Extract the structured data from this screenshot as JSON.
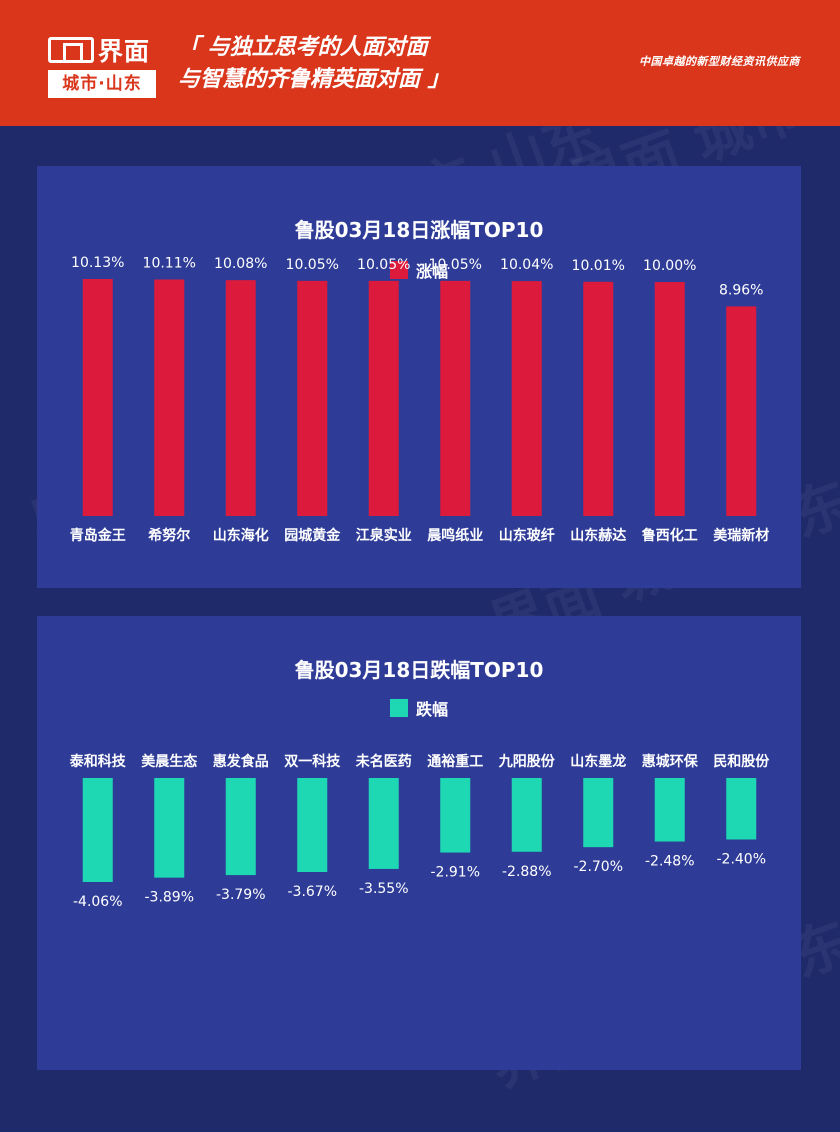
{
  "header": {
    "logo_name": "界面",
    "logo_sub": "城市·山东",
    "slogan_line1": "「 与独立思考的人面对面",
    "slogan_line2": "与智慧的齐鲁精英面对面 」",
    "tagline": "中国卓越的新型财经资讯供应商"
  },
  "colors": {
    "header_bg": "#d9361c",
    "page_bg": "#1f2a6b",
    "panel_bg": "#2e3c97",
    "rise_bar": "#dc1a3c",
    "fall_bar": "#1ed8b4"
  },
  "chart_data": [
    {
      "type": "bar",
      "title": "鲁股03月18日涨幅TOP10",
      "legend": "涨幅",
      "categories": [
        "青岛金王",
        "希努尔",
        "山东海化",
        "园城黄金",
        "江泉实业",
        "晨鸣纸业",
        "山东玻纤",
        "山东赫达",
        "鲁西化工",
        "美瑞新材"
      ],
      "values": [
        10.13,
        10.11,
        10.08,
        10.05,
        10.05,
        10.05,
        10.04,
        10.01,
        10.0,
        8.96
      ],
      "labels": [
        "10.13%",
        "10.11%",
        "10.08%",
        "10.05%",
        "10.05%",
        "10.05%",
        "10.04%",
        "10.01%",
        "10.00%",
        "8.96%"
      ],
      "color": "#dc1a3c"
    },
    {
      "type": "bar",
      "title": "鲁股03月18日跌幅TOP10",
      "legend": "跌幅",
      "categories": [
        "泰和科技",
        "美晨生态",
        "惠发食品",
        "双一科技",
        "未名医药",
        "通裕重工",
        "九阳股份",
        "山东墨龙",
        "惠城环保",
        "民和股份"
      ],
      "values": [
        -4.06,
        -3.89,
        -3.79,
        -3.67,
        -3.55,
        -2.91,
        -2.88,
        -2.7,
        -2.48,
        -2.4
      ],
      "labels": [
        "-4.06%",
        "-3.89%",
        "-3.79%",
        "-3.67%",
        "-3.55%",
        "-2.91%",
        "-2.88%",
        "-2.70%",
        "-2.48%",
        "-2.40%"
      ],
      "color": "#1ed8b4"
    }
  ]
}
